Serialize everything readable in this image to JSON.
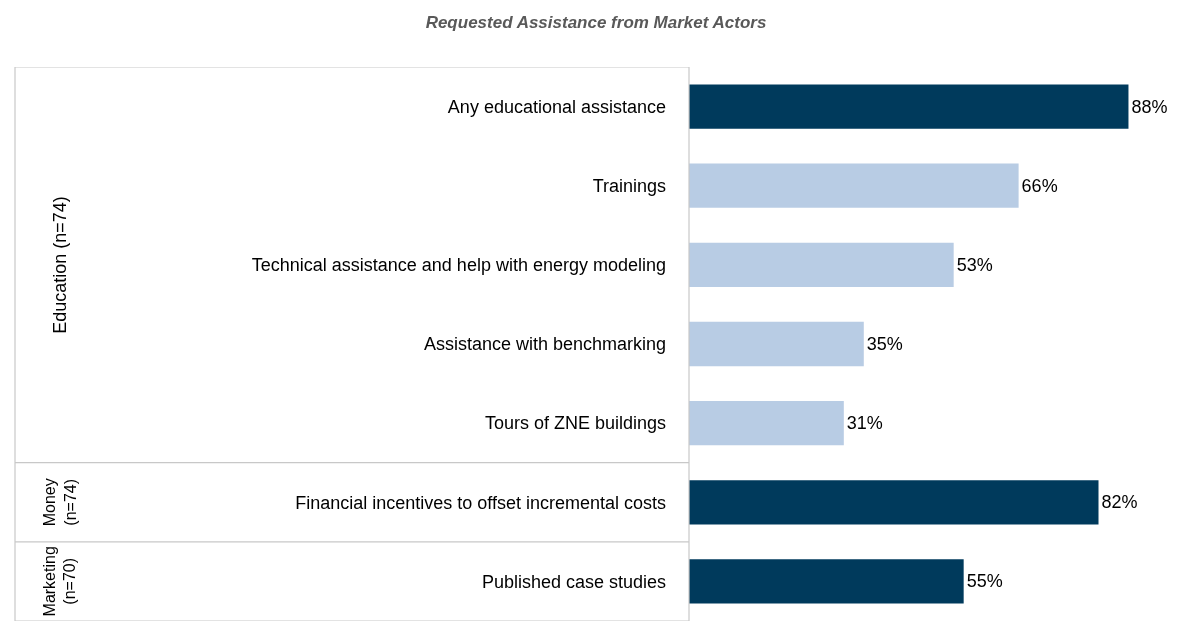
{
  "chart_data": {
    "type": "bar",
    "orientation": "horizontal",
    "title": "Requested Assistance from Market Actors",
    "categories": [
      "Any educational assistance",
      "Trainings",
      "Technical assistance and help with energy modeling",
      "Assistance with benchmarking",
      "Tours of ZNE buildings",
      "Financial incentives to offset incremental costs",
      "Published case studies"
    ],
    "series": [
      {
        "colors": [
          "#003a5c",
          "#b8cce4",
          "#b8cce4",
          "#b8cce4",
          "#b8cce4",
          null,
          null
        ],
        "values": [
          88,
          66,
          53,
          35,
          31,
          null,
          null
        ],
        "value_labels": [
          "88%",
          "66%",
          "53%",
          "35%",
          "31%",
          null,
          null
        ]
      },
      {
        "colors": [
          null,
          null,
          null,
          null,
          null,
          "#003a5c",
          null
        ],
        "values": [
          null,
          null,
          null,
          null,
          null,
          82,
          null
        ],
        "value_labels": [
          null,
          null,
          null,
          null,
          null,
          "82%",
          null
        ]
      },
      {
        "colors": [
          null,
          null,
          null,
          null,
          null,
          null,
          "#003a5c"
        ],
        "values": [
          null,
          null,
          null,
          null,
          null,
          null,
          55
        ],
        "value_labels": [
          null,
          null,
          null,
          null,
          null,
          null,
          "55%"
        ]
      }
    ],
    "annotations": [
      "Education (n=74)",
      "Money (n=74)",
      "Marketing (n=70)"
    ],
    "legend": false
  }
}
